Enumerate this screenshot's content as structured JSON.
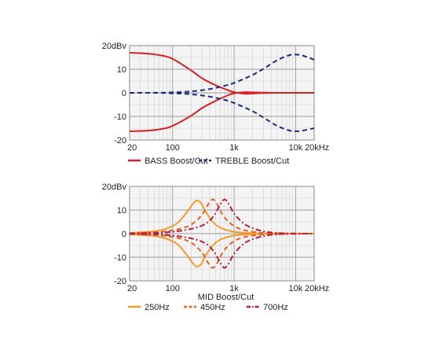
{
  "chart_data": [
    {
      "type": "line",
      "xscale": "log",
      "xlim": [
        20,
        20000
      ],
      "ylim": [
        -20,
        20
      ],
      "grid": true,
      "legend_position": "bottom",
      "y_ticks": [
        "20dBv",
        "10",
        "0",
        "-10",
        "-20"
      ],
      "x_ticks": [
        {
          "value": 20,
          "label": "20"
        },
        {
          "value": 100,
          "label": "100"
        },
        {
          "value": 1000,
          "label": "1k"
        },
        {
          "value": 10000,
          "label": "10k"
        },
        {
          "value": 20000,
          "label": "20kHz"
        }
      ],
      "xlabel": "",
      "legend": [
        {
          "label": "BASS Boost/Cut",
          "color": "#d62027",
          "dash": "solid"
        },
        {
          "label": "TREBLE Boost/Cut",
          "color": "#1f2a7a",
          "dash": "dashed"
        }
      ],
      "series": [
        {
          "group": "BASS Boost/Cut",
          "color": "#d62027",
          "dash": "solid",
          "points": [
            [
              20,
              17
            ],
            [
              40,
              16.6
            ],
            [
              70,
              15.7
            ],
            [
              100,
              14.4
            ],
            [
              200,
              9.5
            ],
            [
              300,
              6.2
            ],
            [
              500,
              3.2
            ],
            [
              800,
              1.1
            ],
            [
              1000,
              0.3
            ],
            [
              1500,
              -0.4
            ],
            [
              2000,
              -0.3
            ],
            [
              3000,
              -0.1
            ],
            [
              5000,
              0
            ],
            [
              10000,
              0
            ],
            [
              20000,
              0
            ]
          ]
        },
        {
          "group": "BASS Boost/Cut",
          "color": "#d62027",
          "dash": "solid",
          "points": [
            [
              20,
              -16.3
            ],
            [
              40,
              -16
            ],
            [
              70,
              -15.2
            ],
            [
              100,
              -14
            ],
            [
              200,
              -9.7
            ],
            [
              300,
              -6.5
            ],
            [
              500,
              -3.4
            ],
            [
              800,
              -1
            ],
            [
              1000,
              -0.2
            ],
            [
              1500,
              0.3
            ],
            [
              2000,
              0.2
            ],
            [
              3000,
              0.1
            ],
            [
              5000,
              0
            ],
            [
              10000,
              0
            ],
            [
              20000,
              0
            ]
          ]
        },
        {
          "group": "TREBLE Boost/Cut",
          "color": "#1f2a7a",
          "dash": "dashed",
          "points": [
            [
              20,
              0
            ],
            [
              50,
              0
            ],
            [
              100,
              0.2
            ],
            [
              200,
              0.6
            ],
            [
              400,
              1.6
            ],
            [
              700,
              3
            ],
            [
              1000,
              4.2
            ],
            [
              2000,
              7.6
            ],
            [
              3000,
              10.2
            ],
            [
              5000,
              13.8
            ],
            [
              8000,
              16
            ],
            [
              10000,
              16.2
            ],
            [
              13000,
              15.8
            ],
            [
              20000,
              14
            ]
          ]
        },
        {
          "group": "TREBLE Boost/Cut",
          "color": "#1f2a7a",
          "dash": "dashed",
          "points": [
            [
              20,
              0
            ],
            [
              50,
              0
            ],
            [
              100,
              -0.2
            ],
            [
              200,
              -0.6
            ],
            [
              400,
              -1.6
            ],
            [
              700,
              -3
            ],
            [
              1000,
              -4.3
            ],
            [
              2000,
              -7.8
            ],
            [
              3000,
              -10.5
            ],
            [
              5000,
              -14
            ],
            [
              8000,
              -16
            ],
            [
              10000,
              -16.3
            ],
            [
              13000,
              -16
            ],
            [
              20000,
              -15
            ]
          ]
        }
      ]
    },
    {
      "type": "line",
      "xscale": "log",
      "xlim": [
        20,
        20000
      ],
      "ylim": [
        -20,
        20
      ],
      "grid": true,
      "legend_position": "bottom",
      "y_ticks": [
        "20dBv",
        "10",
        "0",
        "-10",
        "-20"
      ],
      "x_ticks": [
        {
          "value": 20,
          "label": "20"
        },
        {
          "value": 100,
          "label": "100"
        },
        {
          "value": 1000,
          "label": "1k"
        },
        {
          "value": 10000,
          "label": "10k"
        },
        {
          "value": 20000,
          "label": "20kHz"
        }
      ],
      "xlabel": "MID Boost/Cut",
      "legend": [
        {
          "label": "250Hz",
          "color": "#f39a2b",
          "dash": "solid"
        },
        {
          "label": "450Hz",
          "color": "#e6622a",
          "dash": "dashed"
        },
        {
          "label": "700Hz",
          "color": "#b51f3c",
          "dash": "dashdot"
        }
      ],
      "series": [
        {
          "group": "250Hz",
          "color": "#f39a2b",
          "dash": "solid",
          "points": [
            [
              20,
              0.3
            ],
            [
              50,
              1
            ],
            [
              80,
              2.2
            ],
            [
              120,
              4.5
            ],
            [
              170,
              9
            ],
            [
              220,
              13
            ],
            [
              250,
              14
            ],
            [
              290,
              13
            ],
            [
              350,
              9
            ],
            [
              450,
              5
            ],
            [
              600,
              2.5
            ],
            [
              1000,
              0.8
            ],
            [
              2000,
              0.2
            ],
            [
              5000,
              0
            ],
            [
              20000,
              0
            ]
          ]
        },
        {
          "group": "250Hz",
          "color": "#f39a2b",
          "dash": "solid",
          "points": [
            [
              20,
              -0.3
            ],
            [
              50,
              -1
            ],
            [
              80,
              -2.2
            ],
            [
              120,
              -4.5
            ],
            [
              170,
              -9
            ],
            [
              220,
              -13
            ],
            [
              250,
              -14
            ],
            [
              290,
              -13
            ],
            [
              350,
              -9
            ],
            [
              450,
              -5
            ],
            [
              600,
              -2.5
            ],
            [
              1000,
              -0.8
            ],
            [
              2000,
              -0.2
            ],
            [
              5000,
              0
            ],
            [
              20000,
              0
            ]
          ]
        },
        {
          "group": "450Hz",
          "color": "#e6622a",
          "dash": "dashed",
          "points": [
            [
              20,
              0.2
            ],
            [
              60,
              0.7
            ],
            [
              120,
              1.8
            ],
            [
              200,
              3.8
            ],
            [
              300,
              8
            ],
            [
              380,
              12.5
            ],
            [
              450,
              14.5
            ],
            [
              530,
              12.5
            ],
            [
              650,
              8
            ],
            [
              850,
              4.5
            ],
            [
              1200,
              2.2
            ],
            [
              2000,
              0.8
            ],
            [
              4000,
              0.2
            ],
            [
              20000,
              0
            ]
          ]
        },
        {
          "group": "450Hz",
          "color": "#e6622a",
          "dash": "dashed",
          "points": [
            [
              20,
              -0.2
            ],
            [
              60,
              -0.7
            ],
            [
              120,
              -1.8
            ],
            [
              200,
              -3.8
            ],
            [
              300,
              -8
            ],
            [
              380,
              -12.5
            ],
            [
              450,
              -14.5
            ],
            [
              530,
              -12.5
            ],
            [
              650,
              -8
            ],
            [
              850,
              -4.5
            ],
            [
              1200,
              -2.2
            ],
            [
              2000,
              -0.8
            ],
            [
              4000,
              -0.2
            ],
            [
              20000,
              0
            ]
          ]
        },
        {
          "group": "700Hz",
          "color": "#b51f3c",
          "dash": "dashdot",
          "points": [
            [
              20,
              0.1
            ],
            [
              80,
              0.6
            ],
            [
              200,
              2
            ],
            [
              350,
              4.3
            ],
            [
              480,
              8
            ],
            [
              600,
              12.5
            ],
            [
              700,
              14.5
            ],
            [
              820,
              12.5
            ],
            [
              1000,
              8.5
            ],
            [
              1400,
              4.5
            ],
            [
              2000,
              2.3
            ],
            [
              3500,
              0.7
            ],
            [
              7000,
              0.1
            ],
            [
              20000,
              0
            ]
          ]
        },
        {
          "group": "700Hz",
          "color": "#b51f3c",
          "dash": "dashdot",
          "points": [
            [
              20,
              -0.1
            ],
            [
              80,
              -0.6
            ],
            [
              200,
              -2
            ],
            [
              350,
              -4.3
            ],
            [
              480,
              -8
            ],
            [
              600,
              -12.5
            ],
            [
              700,
              -14.5
            ],
            [
              820,
              -12.5
            ],
            [
              1000,
              -8.5
            ],
            [
              1400,
              -4.5
            ],
            [
              2000,
              -2.3
            ],
            [
              3500,
              -0.7
            ],
            [
              7000,
              -0.1
            ],
            [
              20000,
              0
            ]
          ]
        }
      ]
    }
  ]
}
